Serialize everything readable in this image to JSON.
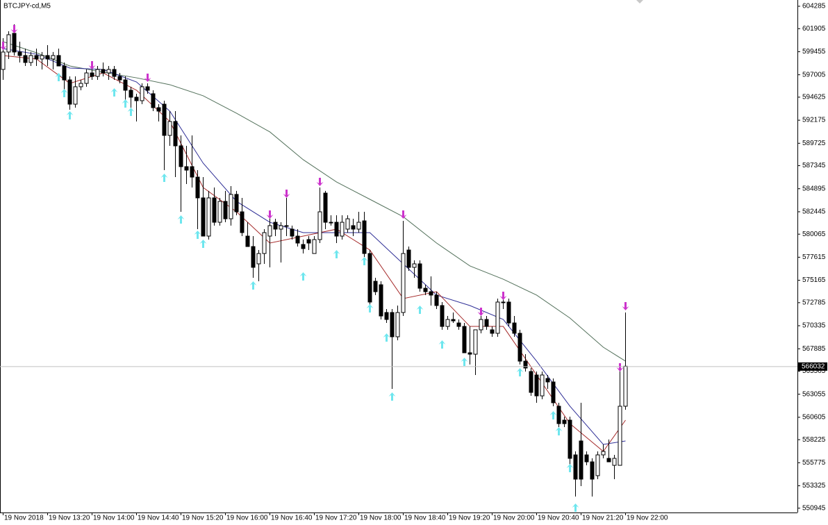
{
  "chart_data": {
    "type": "candlestick",
    "title": "BTCJPY-cd,M5",
    "categories": [
      "19 Nov 2018",
      null,
      null,
      null,
      null,
      null,
      null,
      null,
      "19 Nov 13:20",
      null,
      null,
      null,
      null,
      null,
      null,
      null,
      "19 Nov 14:00",
      null,
      null,
      null,
      null,
      null,
      null,
      null,
      "19 Nov 14:40",
      null,
      null,
      null,
      null,
      null,
      null,
      null,
      "19 Nov 15:20",
      null,
      null,
      null,
      null,
      null,
      null,
      null,
      "19 Nov 16:00",
      null,
      null,
      null,
      null,
      null,
      null,
      null,
      "19 Nov 16:40",
      null,
      null,
      null,
      null,
      null,
      null,
      null,
      "19 Nov 17:20",
      null,
      null,
      null,
      null,
      null,
      null,
      null,
      "19 Nov 18:00",
      null,
      null,
      null,
      null,
      null,
      null,
      null,
      "19 Nov 18:40",
      null,
      null,
      null,
      null,
      null,
      null,
      null,
      "19 Nov 19:20",
      null,
      null,
      null,
      null,
      null,
      null,
      null,
      "19 Nov 20:00",
      null,
      null,
      null,
      null,
      null,
      null,
      null,
      "19 Nov 20:40",
      null,
      null,
      null,
      null,
      null,
      null,
      null,
      "19 Nov 21:20",
      null,
      null,
      null,
      null,
      null,
      null,
      null,
      "19 Nov 22:00"
    ],
    "ohlc": [
      [
        597570,
        600890,
        596460,
        599420
      ],
      [
        599420,
        601630,
        598680,
        601260
      ],
      [
        601410,
        602370,
        599050,
        599420
      ],
      [
        599420,
        600520,
        598310,
        599050
      ],
      [
        599050,
        599780,
        597940,
        598310
      ],
      [
        598310,
        599420,
        597940,
        599050
      ],
      [
        599050,
        599780,
        597940,
        598680
      ],
      [
        598680,
        599420,
        597570,
        599050
      ],
      [
        599050,
        600150,
        597940,
        598680
      ],
      [
        598680,
        599420,
        597570,
        599050
      ],
      [
        599050,
        599780,
        597940,
        597940
      ],
      [
        597940,
        598310,
        595360,
        596460
      ],
      [
        596460,
        596830,
        593290,
        593880
      ],
      [
        593880,
        596830,
        593510,
        595730
      ],
      [
        595730,
        596460,
        595360,
        596090
      ],
      [
        596090,
        597570,
        595730,
        597200
      ],
      [
        597200,
        597940,
        596460,
        596830
      ],
      [
        596830,
        597940,
        596460,
        597570
      ],
      [
        597570,
        598310,
        596830,
        597200
      ],
      [
        597200,
        597940,
        596460,
        597570
      ],
      [
        597570,
        597940,
        596460,
        596830
      ],
      [
        596830,
        597200,
        596090,
        596460
      ],
      [
        596460,
        596830,
        594250,
        595360
      ],
      [
        595360,
        595730,
        593510,
        594620
      ],
      [
        594620,
        594990,
        592040,
        594250
      ],
      [
        594250,
        596090,
        593880,
        595730
      ],
      [
        595730,
        596090,
        594990,
        595360
      ],
      [
        594990,
        595360,
        593140,
        593510
      ],
      [
        593510,
        593880,
        592040,
        593140
      ],
      [
        593880,
        594250,
        586870,
        590560
      ],
      [
        590560,
        593140,
        589450,
        592040
      ],
      [
        592040,
        593140,
        586130,
        589450
      ],
      [
        589450,
        590560,
        582440,
        587240
      ],
      [
        587240,
        589450,
        585390,
        586870
      ],
      [
        587240,
        590560,
        585020,
        586130
      ],
      [
        586130,
        586870,
        580600,
        583920
      ],
      [
        583920,
        586130,
        579860,
        579860
      ],
      [
        579860,
        584660,
        579490,
        583920
      ],
      [
        583920,
        585020,
        580970,
        581330
      ],
      [
        581330,
        583920,
        580970,
        583550
      ],
      [
        583550,
        584660,
        581330,
        581700
      ],
      [
        581700,
        585170,
        580970,
        584290
      ],
      [
        584290,
        584660,
        582070,
        582440
      ],
      [
        582440,
        583920,
        579860,
        580230
      ],
      [
        579860,
        581330,
        578750,
        578750
      ],
      [
        578750,
        579860,
        575430,
        576540
      ],
      [
        576910,
        578380,
        575060,
        578010
      ],
      [
        578010,
        580600,
        576910,
        580230
      ],
      [
        579860,
        582070,
        576540,
        580970
      ],
      [
        581330,
        581700,
        579860,
        580600
      ],
      [
        580600,
        581330,
        577050,
        580970
      ],
      [
        580970,
        583920,
        579860,
        580970
      ],
      [
        580600,
        580970,
        579490,
        579860
      ],
      [
        579860,
        580600,
        578750,
        579120
      ],
      [
        578970,
        579490,
        578010,
        578530
      ],
      [
        579490,
        579860,
        578380,
        579120
      ],
      [
        578010,
        579860,
        578010,
        579490
      ],
      [
        579490,
        585020,
        579120,
        582440
      ],
      [
        584430,
        584660,
        580600,
        581330
      ],
      [
        581330,
        582070,
        580970,
        581330
      ],
      [
        581330,
        582070,
        579120,
        579860
      ],
      [
        579860,
        582070,
        579490,
        581330
      ],
      [
        580600,
        582070,
        580230,
        581700
      ],
      [
        580970,
        581700,
        579860,
        580600
      ],
      [
        580600,
        582440,
        580230,
        581330
      ],
      [
        581480,
        582440,
        577640,
        578010
      ],
      [
        578010,
        578380,
        572480,
        572850
      ],
      [
        575060,
        575430,
        573590,
        573950
      ],
      [
        574690,
        575060,
        571000,
        571370
      ],
      [
        571740,
        572110,
        570630,
        571000
      ],
      [
        571740,
        572110,
        563620,
        569160
      ],
      [
        569160,
        572480,
        568790,
        571740
      ],
      [
        571740,
        581480,
        571370,
        578010
      ],
      [
        578380,
        578750,
        576170,
        576540
      ],
      [
        576540,
        577280,
        575430,
        576910
      ],
      [
        576910,
        577280,
        573950,
        574320
      ],
      [
        574320,
        574690,
        573590,
        573950
      ],
      [
        573950,
        575580,
        572480,
        573590
      ],
      [
        573590,
        573950,
        572110,
        572480
      ],
      [
        572480,
        572850,
        569900,
        570260
      ],
      [
        570260,
        571370,
        569900,
        571000
      ],
      [
        571000,
        571740,
        570630,
        570850
      ],
      [
        570630,
        571000,
        569900,
        570260
      ],
      [
        570260,
        570630,
        567460,
        567460
      ],
      [
        567460,
        570260,
        566210,
        567310
      ],
      [
        567310,
        569900,
        565100,
        569900
      ],
      [
        569900,
        571370,
        569530,
        571000
      ],
      [
        571000,
        571370,
        569900,
        570260
      ],
      [
        569900,
        570260,
        569160,
        569530
      ],
      [
        569530,
        573220,
        569160,
        572850
      ],
      [
        572850,
        573220,
        572110,
        572850
      ],
      [
        572850,
        573220,
        570260,
        570630
      ],
      [
        570630,
        571370,
        569160,
        569530
      ],
      [
        569530,
        569900,
        566210,
        566570
      ],
      [
        566570,
        567310,
        565470,
        565840
      ],
      [
        565470,
        565840,
        562880,
        563250
      ],
      [
        565100,
        565470,
        562150,
        562880
      ],
      [
        562880,
        565470,
        562520,
        565100
      ],
      [
        564730,
        565100,
        563620,
        564360
      ],
      [
        564360,
        564730,
        561780,
        562150
      ],
      [
        561780,
        562150,
        559560,
        559930
      ],
      [
        560300,
        560670,
        559560,
        559930
      ],
      [
        560300,
        560670,
        555500,
        556240
      ],
      [
        556610,
        556980,
        552180,
        554030
      ],
      [
        558090,
        562150,
        553290,
        554030
      ],
      [
        556610,
        556980,
        555500,
        555870
      ],
      [
        555870,
        556240,
        552180,
        554030
      ],
      [
        554400,
        556980,
        554030,
        556610
      ],
      [
        556610,
        557720,
        556240,
        556980
      ],
      [
        556240,
        558240,
        555870,
        555870
      ],
      [
        555500,
        556610,
        554030,
        556240
      ],
      [
        555500,
        565980,
        555500,
        561780
      ],
      [
        561780,
        571740,
        561410,
        566032
      ]
    ],
    "up_color": "#ffffff",
    "down_color": "#000000",
    "series": [
      {
        "color": "#52705a",
        "x": [
          0,
          6,
          12,
          18,
          24,
          30,
          36,
          42,
          48,
          54,
          60,
          66,
          72,
          78,
          84,
          90,
          96,
          102,
          108,
          112
        ],
        "values": [
          600520,
          599340,
          597940,
          597275,
          596680,
          595950,
          594770,
          592920,
          590930,
          587980,
          585610,
          583770,
          581920,
          579120,
          576690,
          575280,
          573590,
          571150,
          568050,
          566570
        ]
      },
      {
        "color": "#2e2e96",
        "x": [
          0,
          6,
          12,
          18,
          24,
          30,
          36,
          42,
          48,
          54,
          60,
          66,
          72,
          78,
          84,
          90,
          96,
          102,
          108,
          112
        ],
        "values": [
          599780,
          599190,
          597720,
          597570,
          596240,
          593140,
          587610,
          583550,
          581330,
          580230,
          580230,
          580230,
          576910,
          573590,
          572480,
          571000,
          566570,
          561780,
          557720,
          558090
        ]
      },
      {
        "color": "#a52a2a",
        "x": [
          0,
          6,
          12,
          18,
          24,
          30,
          36,
          42,
          48,
          54,
          60,
          66,
          72,
          78,
          84,
          90,
          96,
          102,
          108,
          112
        ],
        "values": [
          599050,
          598680,
          596090,
          597200,
          595360,
          592040,
          585020,
          582440,
          579120,
          579860,
          580600,
          578380,
          573220,
          573950,
          570260,
          570260,
          565100,
          559930,
          556980,
          560300
        ]
      }
    ],
    "up_arrows": {
      "color": "#6ee6ee",
      "x": [
        10,
        11,
        12,
        20,
        22,
        23,
        29,
        32,
        35,
        36,
        45,
        54,
        60,
        65,
        66,
        69,
        70,
        75,
        79,
        83,
        93,
        99,
        100,
        102,
        103
      ],
      "values": [
        597200,
        595500,
        593140,
        595580,
        594400,
        593510,
        586500,
        582070,
        580450,
        579490,
        575060,
        576020,
        578380,
        577640,
        572630,
        569530,
        563250,
        572480,
        568790,
        566940,
        565840,
        561260,
        559560,
        555650,
        551450
      ]
    },
    "down_arrows": {
      "color": "#cc33cc",
      "x": [
        0,
        2,
        16,
        26,
        48,
        51,
        57,
        72,
        86,
        90,
        111,
        112
      ],
      "values": [
        599640,
        601410,
        597570,
        596240,
        581700,
        583920,
        585170,
        581700,
        571370,
        573070,
        565470,
        571960
      ]
    },
    "current_price": 566032,
    "ylim": [
      550486,
      604950
    ],
    "yticks": [
      604285,
      601905,
      599455,
      597005,
      594625,
      592175,
      589725,
      587345,
      584895,
      582445,
      580065,
      577615,
      575165,
      572785,
      570335,
      567885,
      565505,
      563055,
      560605,
      558225,
      555775,
      553325,
      550945
    ]
  }
}
